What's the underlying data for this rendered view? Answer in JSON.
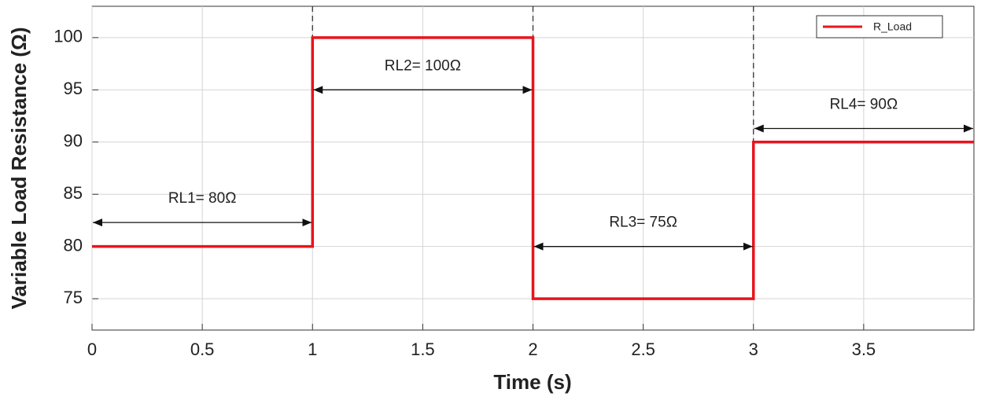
{
  "chart_data": {
    "type": "line",
    "x_label": "Time (s)",
    "y_label": "Variable Load Resistance (Ω)",
    "x": [
      0,
      1,
      1,
      2,
      2,
      3,
      3,
      4
    ],
    "series": [
      {
        "name": "R_Load",
        "color": "#e8141c",
        "values": [
          80,
          80,
          100,
          100,
          75,
          75,
          90,
          90
        ]
      }
    ],
    "xlim": [
      0,
      4
    ],
    "xticks": [
      0,
      0.5,
      1,
      1.5,
      2,
      2.5,
      3,
      3.5
    ],
    "ylim": [
      72,
      103
    ],
    "yticks": [
      75,
      80,
      85,
      90,
      95,
      100
    ],
    "grid": true,
    "legend": "upper right",
    "annotations": [
      {
        "text": "RL1= 80Ω",
        "x": [
          0,
          1
        ],
        "y": 82.3
      },
      {
        "text": "RL2= 100Ω",
        "x": [
          1,
          2
        ],
        "y": 95
      },
      {
        "text": "RL3= 75Ω",
        "x": [
          2,
          3
        ],
        "y": 80
      },
      {
        "text": "RL4= 90Ω",
        "x": [
          3,
          4
        ],
        "y": 91.3
      }
    ]
  }
}
